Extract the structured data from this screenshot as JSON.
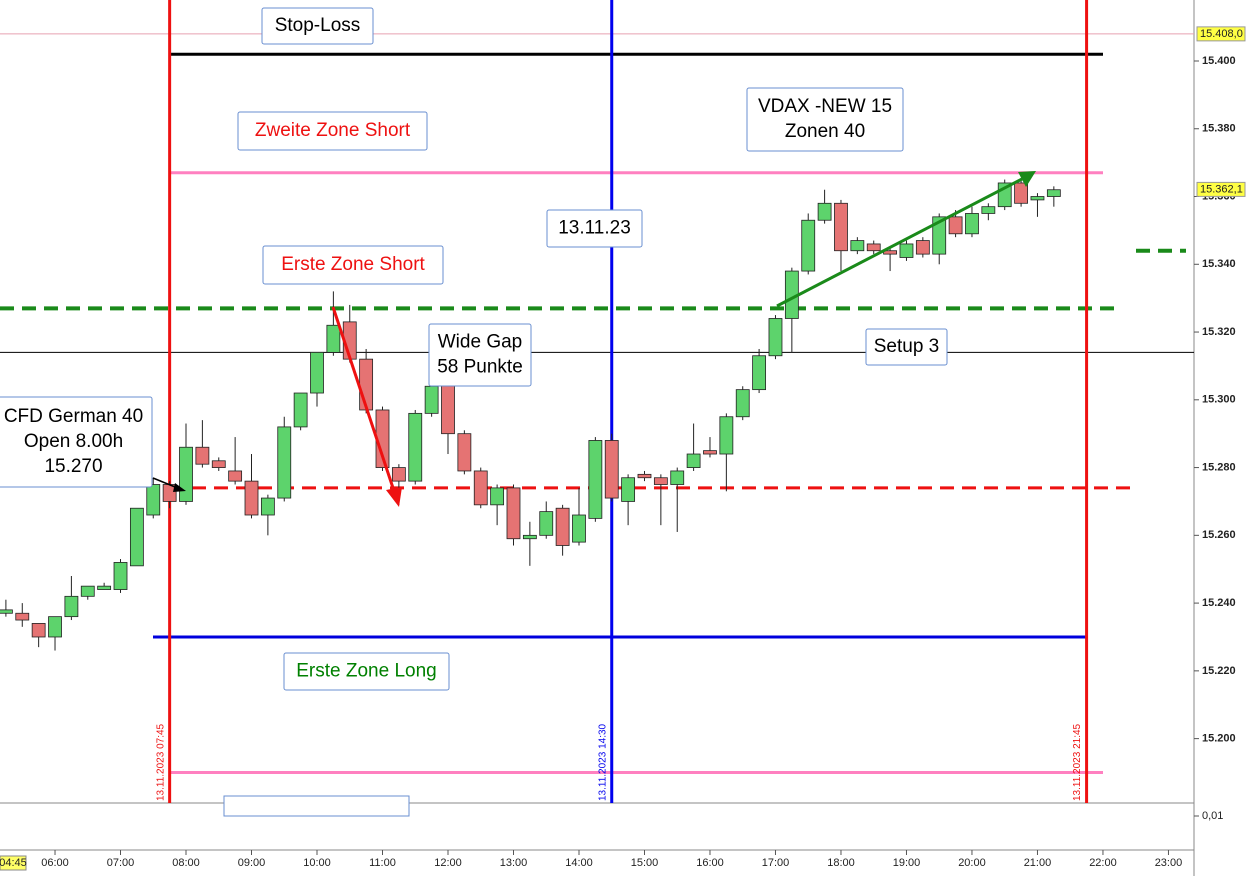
{
  "chart_data": {
    "type": "candlestick",
    "x": [
      5.25,
      5.5,
      5.75,
      6,
      6.25,
      6.5,
      6.75,
      7,
      7.25,
      7.5,
      7.75,
      8,
      8.25,
      8.5,
      8.75,
      9,
      9.25,
      9.5,
      9.75,
      10,
      10.25,
      10.5,
      10.75,
      11,
      11.25,
      11.5,
      11.75,
      12,
      12.25,
      12.5,
      12.75,
      13,
      13.25,
      13.5,
      13.75,
      14,
      14.25,
      14.5,
      14.75,
      15,
      15.25,
      15.5,
      15.75,
      16,
      16.25,
      16.5,
      16.75,
      17,
      17.25,
      17.5,
      17.75,
      18,
      18.25,
      18.5,
      18.75,
      19,
      19.25,
      19.5,
      19.75,
      20,
      20.25,
      20.5,
      20.75,
      21,
      21.25
    ],
    "open": [
      15237,
      15237,
      15234,
      15230,
      15236,
      15242,
      15244,
      15244,
      15251,
      15266,
      15275,
      15270,
      15286,
      15282,
      15279,
      15276,
      15266,
      15271,
      15292,
      15302,
      15314,
      15323,
      15312,
      15297,
      15280,
      15276,
      15296,
      15305,
      15290,
      15279,
      15269,
      15274,
      15259,
      15260,
      15268,
      15258,
      15265,
      15288,
      15270,
      15278,
      15277,
      15275,
      15280,
      15285,
      15284,
      15295,
      15303,
      15313,
      15324,
      15338,
      15353,
      15358,
      15344,
      15346,
      15344,
      15342,
      15347,
      15343,
      15354,
      15349,
      15355,
      15357,
      15364,
      15359,
      15360
    ],
    "high": [
      15241,
      15240,
      15234,
      15236,
      15248,
      15245,
      15246,
      15253,
      15268,
      15277,
      15276,
      15293,
      15294,
      15283,
      15289,
      15284,
      15272,
      15295,
      15302,
      15314,
      15332,
      15328,
      15315,
      15298,
      15281,
      15297,
      15307,
      15306,
      15291,
      15280,
      15275,
      15275,
      15264,
      15270,
      15269,
      15274,
      15289,
      15290,
      15278,
      15279,
      15278,
      15280,
      15293,
      15289,
      15296,
      15304,
      15315,
      15325,
      15339,
      15355,
      15362,
      15359,
      15348,
      15347,
      15345,
      15347,
      15348,
      15355,
      15356,
      15357,
      15358,
      15365,
      15365,
      15361,
      15363
    ],
    "low": [
      15236,
      15233,
      15227,
      15226,
      15235,
      15241,
      15244,
      15243,
      15251,
      15265,
      15268,
      15269,
      15280,
      15279,
      15275,
      15265,
      15260,
      15270,
      15291,
      15298,
      15313,
      15311,
      15296,
      15279,
      15269,
      15275,
      15295,
      15284,
      15278,
      15268,
      15263,
      15257,
      15251,
      15259,
      15254,
      15257,
      15264,
      15270,
      15263,
      15276,
      15263,
      15261,
      15279,
      15283,
      15273,
      15294,
      15302,
      15312,
      15314,
      15337,
      15352,
      15338,
      15343,
      15343,
      15338,
      15341,
      15342,
      15340,
      15348,
      15348,
      15353,
      15356,
      15357,
      15354,
      15357
    ],
    "close": [
      15238,
      15235,
      15230,
      15236,
      15242,
      15245,
      15245,
      15252,
      15268,
      15275,
      15270,
      15286,
      15281,
      15280,
      15276,
      15266,
      15271,
      15292,
      15302,
      15314,
      15322,
      15312,
      15297,
      15280,
      15276,
      15296,
      15304,
      15290,
      15279,
      15269,
      15274,
      15259,
      15260,
      15267,
      15257,
      15266,
      15288,
      15271,
      15277,
      15277,
      15275,
      15279,
      15284,
      15284,
      15295,
      15303,
      15313,
      15324,
      15338,
      15353,
      15358,
      15344,
      15347,
      15344,
      15343,
      15346,
      15343,
      15354,
      15349,
      15355,
      15357,
      15364,
      15358,
      15360,
      15362
    ],
    "up_color": "#5dd36c",
    "down_color": "#e57373",
    "xlim": [
      5.16,
      23.39
    ],
    "ylim": [
      15181,
      15418
    ],
    "xticks": [
      {
        "value": 6,
        "label": "06:00"
      },
      {
        "value": 7,
        "label": "07:00"
      },
      {
        "value": 8,
        "label": "08:00"
      },
      {
        "value": 9,
        "label": "09:00"
      },
      {
        "value": 10,
        "label": "10:00"
      },
      {
        "value": 11,
        "label": "11:00"
      },
      {
        "value": 12,
        "label": "12:00"
      },
      {
        "value": 13,
        "label": "13:00"
      },
      {
        "value": 14,
        "label": "14:00"
      },
      {
        "value": 15,
        "label": "15:00"
      },
      {
        "value": 16,
        "label": "16:00"
      },
      {
        "value": 17,
        "label": "17:00"
      },
      {
        "value": 18,
        "label": "18:00"
      },
      {
        "value": 19,
        "label": "19:00"
      },
      {
        "value": 20,
        "label": "20:00"
      },
      {
        "value": 21,
        "label": "21:00"
      },
      {
        "value": 22,
        "label": "22:00"
      },
      {
        "value": 23,
        "label": "23:00"
      }
    ],
    "yticks": [
      {
        "value": 15200,
        "label": "15.200"
      },
      {
        "value": 15220,
        "label": "15.220"
      },
      {
        "value": 15240,
        "label": "15.240"
      },
      {
        "value": 15260,
        "label": "15.260"
      },
      {
        "value": 15280,
        "label": "15.280"
      },
      {
        "value": 15300,
        "label": "15.300"
      },
      {
        "value": 15320,
        "label": "15.320"
      },
      {
        "value": 15340,
        "label": "15.340"
      },
      {
        "value": 15360,
        "label": "15.360"
      },
      {
        "value": 15380,
        "label": "15.380"
      },
      {
        "value": 15400,
        "label": "15.400"
      }
    ],
    "price_labels": [
      {
        "value": 15408.0,
        "label": "15.408,0"
      },
      {
        "value": 15362.1,
        "label": "15.362,1"
      }
    ],
    "cursor_label": "04:45",
    "lower_yticks": [
      {
        "value": 0.01,
        "label": "0,01"
      }
    ],
    "levels": [
      {
        "value": 15408,
        "color": "#e8a0b0",
        "width": 1,
        "dashed": false
      },
      {
        "value": 15402,
        "color": "#000000",
        "width": 3,
        "dashed": false
      },
      {
        "value": 15367,
        "color": "#ff80c0",
        "width": 3,
        "dashed": false
      },
      {
        "value": 15344,
        "color": "#1a8a1a",
        "width": 4,
        "dashed": true
      },
      {
        "value": 15327,
        "color": "#1a8a1a",
        "width": 4,
        "dashed": true
      },
      {
        "value": 15314,
        "color": "#000000",
        "width": 1,
        "dashed": false
      },
      {
        "value": 15274,
        "color": "#ee1111",
        "width": 3,
        "dashed": true
      },
      {
        "value": 15230,
        "color": "#0000dd",
        "width": 3,
        "dashed": false
      },
      {
        "value": 15190,
        "color": "#ff80c0",
        "width": 3,
        "dashed": false
      }
    ],
    "vlines": [
      {
        "x": 7.75,
        "color": "#ee1111",
        "label": "13.11.2023 07:45"
      },
      {
        "x": 14.5,
        "color": "#0000ee",
        "label": "13.11.2023 14:30"
      },
      {
        "x": 21.75,
        "color": "#ee1111",
        "label": "13.11.2023 21:45"
      }
    ],
    "annotations": [
      {
        "lines": [
          "Stop-Loss"
        ],
        "color": "#000000"
      },
      {
        "lines": [
          "Zweite Zone Short"
        ],
        "color": "#ee1111"
      },
      {
        "lines": [
          "VDAX -NEW 15",
          "Zonen 40"
        ],
        "color": "#000000"
      },
      {
        "lines": [
          "13.11.23"
        ],
        "color": "#000000"
      },
      {
        "lines": [
          "Erste Zone Short"
        ],
        "color": "#ee1111"
      },
      {
        "lines": [
          "Wide Gap",
          "58 Punkte"
        ],
        "color": "#000000"
      },
      {
        "lines": [
          "Setup 3"
        ],
        "color": "#000000"
      },
      {
        "lines": [
          "CFD German 40",
          "Open 8.00h",
          "15.270"
        ],
        "color": "#000000"
      },
      {
        "lines": [
          "Erste Zone Long"
        ],
        "color": "#008000"
      }
    ]
  }
}
